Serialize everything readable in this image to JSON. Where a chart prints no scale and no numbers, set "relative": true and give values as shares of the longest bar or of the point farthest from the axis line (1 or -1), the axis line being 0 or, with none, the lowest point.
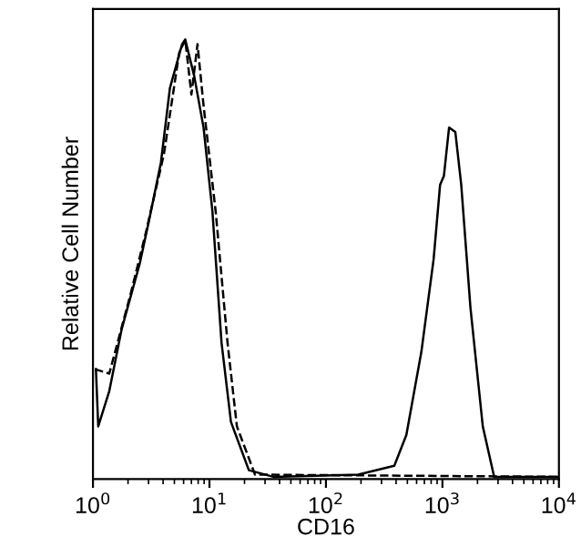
{
  "chart_data": {
    "type": "line",
    "relative": true,
    "xlabel": "CD16",
    "ylabel": "Relative Cell Number",
    "log": "x",
    "xlim": [
      1,
      10000
    ],
    "xticks": [
      {
        "value": 1,
        "label": "10$^{0}$"
      },
      {
        "value": 10,
        "label": "10$^{1}$"
      },
      {
        "value": 100,
        "label": "10$^{2}$"
      },
      {
        "value": 1000,
        "label": "10$^{3}$"
      },
      {
        "value": 10000,
        "label": "10$^{4}$"
      }
    ],
    "grid": false,
    "legend": false,
    "tick_labels": "x",
    "series": [
      {
        "color": "#000000",
        "line_style": "solid",
        "x": [
          1.06,
          1.11,
          1.38,
          1.76,
          2.52,
          3.01,
          3.83,
          4.58,
          5.83,
          6.2,
          7.4,
          8.9,
          10.6,
          12.7,
          15.3,
          21.8,
          35.3,
          189,
          386,
          490,
          660,
          840,
          955,
          1030,
          1140,
          1290,
          1450,
          1740,
          2220,
          2780,
          10000
        ],
        "values": [
          0.25,
          0.12,
          0.2,
          0.34,
          0.49,
          0.585,
          0.72,
          0.89,
          0.99,
          1.0,
          0.917,
          0.8,
          0.61,
          0.31,
          0.13,
          0.02,
          0.005,
          0.01,
          0.03,
          0.1,
          0.29,
          0.5,
          0.67,
          0.69,
          0.8,
          0.79,
          0.67,
          0.39,
          0.12,
          0.005,
          0.005
        ]
      },
      {
        "color": "#000000",
        "line_style": "dashed",
        "x": [
          1.04,
          1.38,
          2.1,
          2.84,
          4.07,
          5.5,
          6.2,
          7.0,
          7.9,
          8.9,
          11.3,
          14.3,
          17.2,
          24.6,
          10000
        ],
        "values": [
          0.25,
          0.24,
          0.42,
          0.56,
          0.74,
          0.97,
          1.0,
          0.875,
          0.99,
          0.85,
          0.61,
          0.31,
          0.12,
          0.01,
          0.005
        ]
      }
    ]
  }
}
